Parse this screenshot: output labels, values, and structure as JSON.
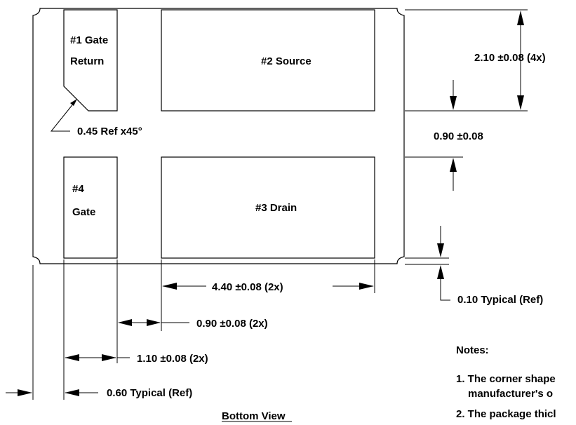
{
  "pads": {
    "gate_return": {
      "line1": "#1 Gate",
      "line2": "Return"
    },
    "source": "#2 Source",
    "gate": {
      "line1": "#4",
      "line2": "Gate"
    },
    "drain": "#3 Drain"
  },
  "dimensions": {
    "pad_height": "2.10 ±0.08 (4x)",
    "pad_gap": "0.90 ±0.08",
    "chamfer": "0.45 Ref x45°",
    "edge_offset": "0.10 Typical (Ref)",
    "large_pad_width": "4.40 ±0.08 (2x)",
    "pad_spacing": "0.90 ±0.08 (2x)",
    "small_pad_width": "1.10 ±0.08 (2x)",
    "outline_offset": "0.60 Typical (Ref)"
  },
  "notes": {
    "heading": "Notes:",
    "note1_line1": "1. The corner shape",
    "note1_line2": "manufacturer's o",
    "note2": "2. The package thicl"
  },
  "view_title": "Bottom View"
}
